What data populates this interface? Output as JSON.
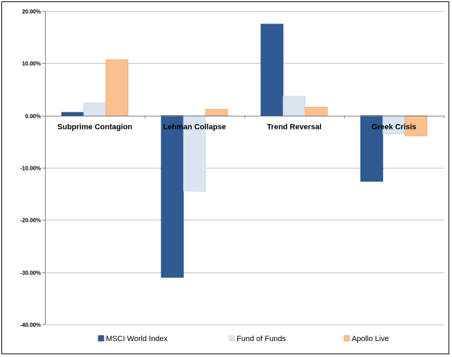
{
  "chart_data": {
    "type": "bar",
    "title": "",
    "xlabel": "",
    "ylabel": "",
    "categories": [
      "Subprime Contagion",
      "Lehman Collapse",
      "Trend Reversal",
      "Greek Crisis"
    ],
    "series": [
      {
        "name": "MSCI World Index",
        "values": [
          0.6,
          -31.0,
          17.5,
          -12.6
        ],
        "color": "#2f5a93"
      },
      {
        "name": "Fund of Funds",
        "values": [
          2.4,
          -14.5,
          3.7,
          -3.5
        ],
        "color": "#dbe5f1"
      },
      {
        "name": "Apollo Live",
        "values": [
          10.7,
          1.2,
          1.6,
          -3.9
        ],
        "color": "#fac090"
      }
    ],
    "ylim": [
      -40,
      20
    ],
    "yticks": [
      -40,
      -30,
      -20,
      -10,
      0,
      10,
      20
    ],
    "ytick_labels": [
      "-40.00%",
      "-30.00%",
      "-20.00%",
      "-10.00%",
      "0.00%",
      "10.00%",
      "20.00%"
    ],
    "grid": true,
    "legend_position": "bottom"
  }
}
